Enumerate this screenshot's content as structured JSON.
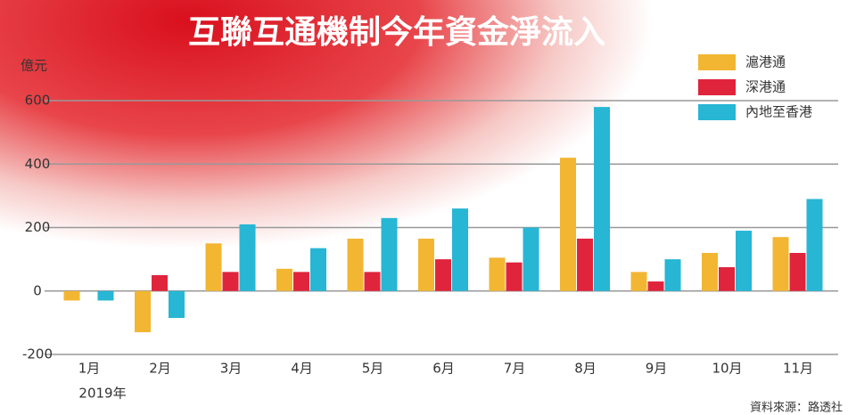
{
  "chart_data": {
    "type": "bar",
    "title": "互聯互通機制今年資金淨流入",
    "y_unit": "億元",
    "year_label": "2019年",
    "source": "資料來源：路透社",
    "categories": [
      "1月",
      "2月",
      "3月",
      "4月",
      "5月",
      "6月",
      "7月",
      "8月",
      "9月",
      "10月",
      "11月"
    ],
    "series": [
      {
        "name": "滬港通",
        "color": "#f2b633",
        "values": [
          -30,
          -130,
          150,
          70,
          165,
          165,
          105,
          420,
          60,
          120,
          170
        ]
      },
      {
        "name": "深港通",
        "color": "#e0243c",
        "values": [
          0,
          50,
          60,
          60,
          60,
          100,
          90,
          165,
          30,
          75,
          120
        ]
      },
      {
        "name": "內地至香港",
        "color": "#27b6d4",
        "values": [
          -30,
          -85,
          210,
          135,
          230,
          260,
          200,
          580,
          100,
          190,
          290
        ]
      }
    ],
    "ylim": [
      -200,
      600
    ],
    "yticks": [
      -200,
      0,
      200,
      400,
      600
    ],
    "grid": true
  }
}
